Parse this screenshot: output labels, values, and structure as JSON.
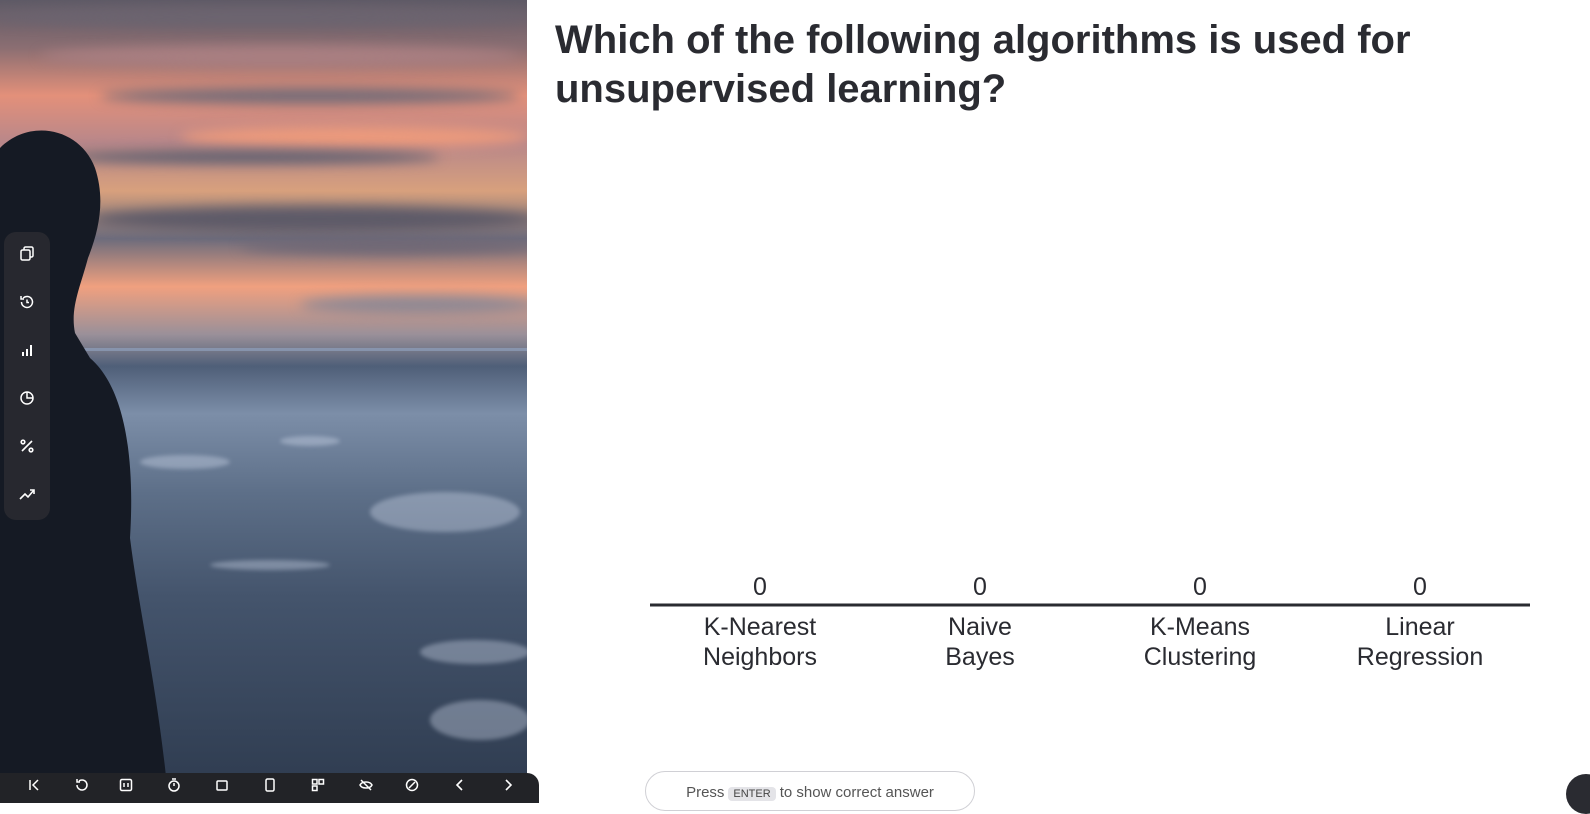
{
  "question": {
    "line1": "Which of the following algorithms is used for",
    "line2": "unsupervised learning?"
  },
  "chart_data": {
    "type": "bar",
    "categories": [
      [
        "K-Nearest",
        "Neighbors"
      ],
      [
        "Naive",
        "Bayes"
      ],
      [
        "K-Means",
        "Clustering"
      ],
      [
        "Linear",
        "Regression"
      ]
    ],
    "values": [
      0,
      0,
      0,
      0
    ],
    "colors": {
      "text": "#2a2b31",
      "baseline": "#2a2b31",
      "bar": "#5b6fd6"
    }
  },
  "hint": {
    "before": "Press",
    "key": "ENTER",
    "after": "to show correct answer"
  },
  "sidebar_tools": [
    "duplicate-icon",
    "reset-results-icon",
    "bar-chart-icon",
    "pie-chart-icon",
    "percent-icon",
    "trend-icon"
  ],
  "bottom_tools": [
    "first-slide-icon",
    "undo-icon",
    "present-icon",
    "timer-icon",
    "screen-icon",
    "device-icon",
    "qr-code-icon",
    "hide-results-icon",
    "chat-icon",
    "prev-slide-icon",
    "next-slide-icon"
  ]
}
